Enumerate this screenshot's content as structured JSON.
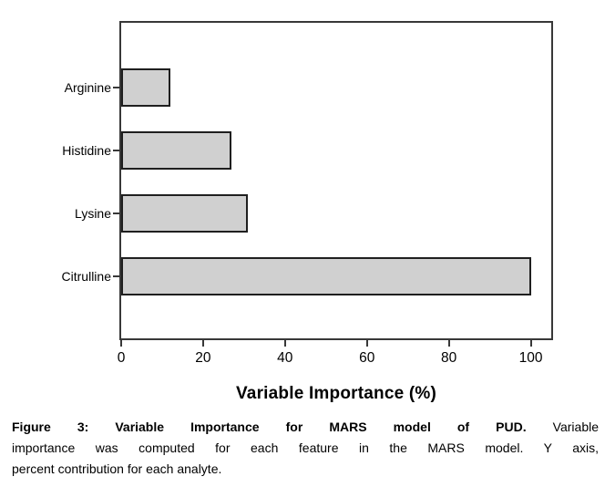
{
  "chart_data": {
    "type": "bar",
    "orientation": "horizontal",
    "title": "",
    "categories": [
      "Arginine",
      "Histidine",
      "Lysine",
      "Citrulline"
    ],
    "values": [
      12,
      27,
      31,
      100
    ],
    "xlabel": "Variable Importance (%)",
    "x_ticks": [
      0,
      20,
      40,
      60,
      80,
      100
    ],
    "xlim": [
      0,
      105
    ],
    "grid": false,
    "legend": false,
    "bar_fill_color": "#d0d0d0",
    "bar_border_color": "#1f1f1f",
    "axis_color": "#383838"
  },
  "caption": {
    "line1_bold": "Figure 3: Variable Importance for MARS model of PUD.",
    "line1_rest": "Variable",
    "line2": "importance was computed for each feature in the MARS model. Y axis,",
    "line3": "percent contribution for each analyte."
  }
}
